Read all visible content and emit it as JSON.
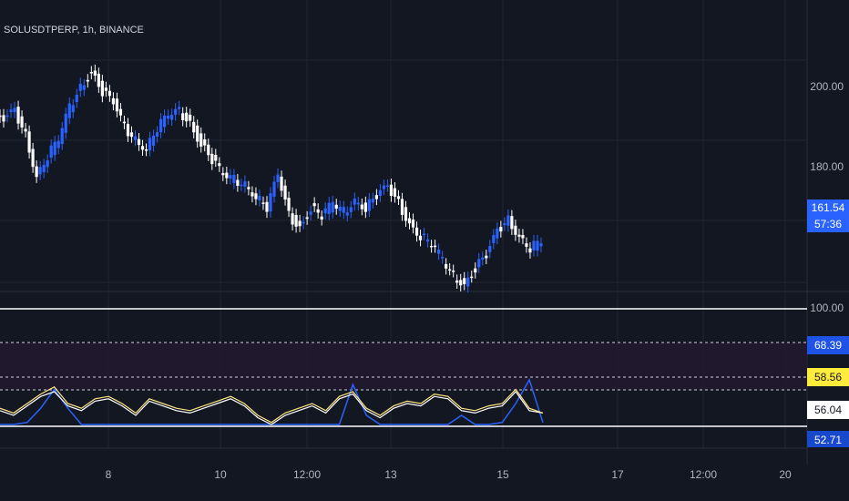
{
  "symbol": "SOLUSDTPERP, 1h, BINANCE",
  "price_axis": [
    "200.00",
    "180.00"
  ],
  "last_price": {
    "value": "161.54",
    "countdown": "57:36",
    "color": "#2962ff"
  },
  "time_axis": [
    "8",
    "10",
    "12:00",
    "13",
    "15",
    "17",
    "12:00",
    "20"
  ],
  "indicator": {
    "level_label": "100.00",
    "values": [
      {
        "text": "68.39",
        "bg": "#1e53e5",
        "fg": "#ffffff"
      },
      {
        "text": "58.56",
        "bg": "#ffeb3b",
        "fg": "#131722"
      },
      {
        "text": "56.04",
        "bg": "#ffffff",
        "fg": "#131722"
      },
      {
        "text": "52.71",
        "bg": "#1848cc",
        "fg": "#ffffff"
      }
    ]
  },
  "colors": {
    "background": "#131722",
    "up_candle": "#2962ff",
    "down_candle": "#ffffff",
    "rsi_yellow": "#ffe680",
    "rsi_white": "#ffffff",
    "rsi_blue": "#2962ff",
    "band_fill": "#2a1f3a"
  },
  "chart_data": {
    "type": "line",
    "price_series": [
      192,
      194,
      188,
      178,
      183,
      187,
      195,
      200,
      204,
      199,
      196,
      190,
      187,
      185,
      190,
      193,
      194,
      191,
      186,
      182,
      178,
      177,
      176,
      173,
      170,
      178,
      168,
      165,
      170,
      168,
      171,
      169,
      172,
      170,
      173,
      175,
      171,
      166,
      163,
      161,
      157,
      153,
      151,
      155,
      158,
      164,
      167,
      163,
      160,
      161.54
    ],
    "rsi_series": {
      "yellow": [
        58,
        56,
        60,
        64,
        67,
        60,
        58,
        62,
        63,
        60,
        56,
        62,
        60,
        58,
        57,
        59,
        61,
        63,
        60,
        55,
        52,
        56,
        58,
        60,
        57,
        63,
        65,
        58,
        55,
        59,
        61,
        60,
        64,
        63,
        58,
        57,
        59,
        60,
        66,
        58,
        56
      ],
      "white": [
        57,
        55,
        59,
        63,
        65,
        59,
        57,
        61,
        62,
        59,
        55,
        61,
        59,
        57,
        56,
        58,
        60,
        62,
        59,
        54,
        51,
        55,
        57,
        59,
        56,
        62,
        64,
        57,
        54,
        58,
        60,
        59,
        63,
        62,
        57,
        56,
        58,
        59,
        65,
        57,
        56
      ],
      "blue": [
        50,
        48,
        52,
        58,
        66,
        58,
        44,
        40,
        42,
        46,
        38,
        42,
        37,
        33,
        35,
        36,
        40,
        38,
        34,
        31,
        30,
        33,
        36,
        38,
        34,
        42,
        68,
        55,
        46,
        40,
        38,
        36,
        42,
        50,
        55,
        45,
        48,
        52,
        60,
        70,
        52
      ]
    }
  }
}
